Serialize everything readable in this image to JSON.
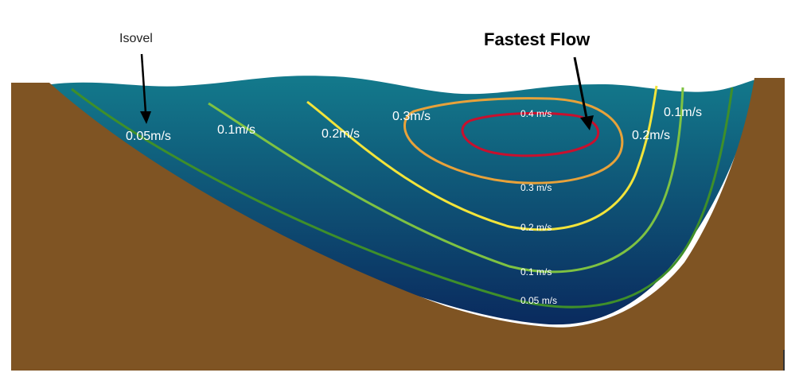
{
  "annotations": {
    "isovel": "Isovel",
    "fastest_flow": "Fastest Flow"
  },
  "labels": {
    "left_005": "0.05m/s",
    "left_01": "0.1m/s",
    "left_02": "0.2m/s",
    "left_03": "0.3m/s",
    "core_04": "0.4 m/s",
    "right_01": "0.1m/s",
    "right_02": "0.2m/s",
    "bottom_03": "0.3 m/s",
    "bottom_02": "0.2 m/s",
    "bottom_01": "0.1 m/s",
    "bottom_005": "0.05 m/s"
  },
  "colors": {
    "bank": "#7f5423",
    "water_top": "#137a8c",
    "water_bottom": "#0a2a5e",
    "isovel_005": "#3f8f2a",
    "isovel_01": "#7ec242",
    "isovel_02": "#f2e43a",
    "isovel_03": "#e8a23a",
    "isovel_04": "#c8102e",
    "arrow": "#000000"
  }
}
